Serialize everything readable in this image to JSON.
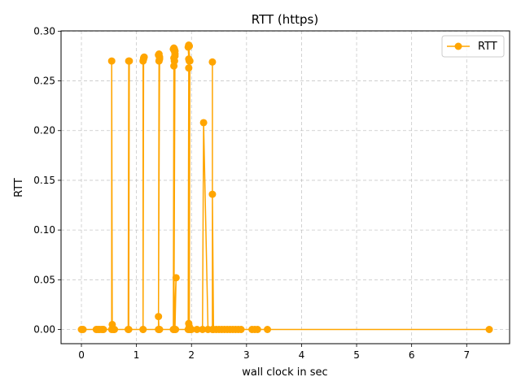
{
  "chart_data": {
    "type": "line",
    "title": "RTT (https)",
    "xlabel": "wall clock in sec",
    "ylabel": "RTT",
    "xlim": [
      -0.37,
      7.78
    ],
    "ylim": [
      -0.0143,
      0.3003
    ],
    "xticks": [
      0,
      1,
      2,
      3,
      4,
      5,
      6,
      7
    ],
    "yticks": [
      0.0,
      0.05,
      0.1,
      0.15,
      0.2,
      0.25,
      0.3
    ],
    "xtick_labels": [
      "0",
      "1",
      "2",
      "3",
      "4",
      "5",
      "6",
      "7"
    ],
    "ytick_labels": [
      "0.00",
      "0.05",
      "0.10",
      "0.15",
      "0.20",
      "0.25",
      "0.30"
    ],
    "grid": true,
    "legend_position": "top-right",
    "colors": {
      "series": "#ffa500",
      "grid": "#b0b0b0"
    },
    "series": [
      {
        "name": "RTT",
        "marker": "circle",
        "x": [
          0.0,
          0.03,
          0.27,
          0.3,
          0.33,
          0.37,
          0.4,
          0.55,
          0.55,
          0.56,
          0.58,
          0.6,
          0.85,
          0.86,
          0.87,
          0.86,
          1.12,
          1.12,
          1.13,
          1.14,
          1.13,
          1.12,
          1.4,
          1.41,
          1.4,
          1.42,
          1.41,
          1.42,
          1.4,
          1.41,
          1.42,
          1.67,
          1.68,
          1.69,
          1.68,
          1.7,
          1.69,
          1.67,
          1.68,
          1.7,
          1.69,
          1.68,
          1.7,
          1.69,
          1.68,
          1.72,
          1.7,
          1.71,
          1.94,
          1.95,
          1.96,
          1.95,
          1.94,
          1.96,
          1.95,
          1.97,
          1.96,
          1.95,
          1.97,
          1.98,
          2.0,
          2.1,
          2.2,
          2.22,
          2.3,
          2.38,
          2.38,
          2.38,
          2.4,
          2.45,
          2.5,
          2.55,
          2.6,
          2.65,
          2.7,
          2.75,
          2.8,
          2.85,
          2.9,
          3.1,
          3.15,
          3.2,
          3.38,
          7.41
        ],
        "y": [
          0.0,
          0.0,
          0.0,
          0.0,
          0.0,
          0.0,
          0.0,
          0.0,
          0.27,
          0.005,
          0.0,
          0.0,
          0.0,
          0.27,
          0.27,
          0.0,
          0.0,
          0.27,
          0.273,
          0.274,
          0.272,
          0.0,
          0.0,
          0.27,
          0.276,
          0.274,
          0.277,
          0.272,
          0.013,
          0.0,
          0.0,
          0.0,
          0.265,
          0.27,
          0.273,
          0.277,
          0.28,
          0.282,
          0.283,
          0.275,
          0.27,
          0.0,
          0.28,
          0.282,
          0.0,
          0.052,
          0.0,
          0.0,
          0.0,
          0.263,
          0.27,
          0.272,
          0.284,
          0.285,
          0.286,
          0.27,
          0.003,
          0.006,
          0.0,
          0.0,
          0.0,
          0.0,
          0.0,
          0.208,
          0.0,
          0.0,
          0.269,
          0.136,
          0.0,
          0.0,
          0.0,
          0.0,
          0.0,
          0.0,
          0.0,
          0.0,
          0.0,
          0.0,
          0.0,
          0.0,
          0.0,
          0.0,
          0.0,
          0.0
        ]
      }
    ]
  }
}
